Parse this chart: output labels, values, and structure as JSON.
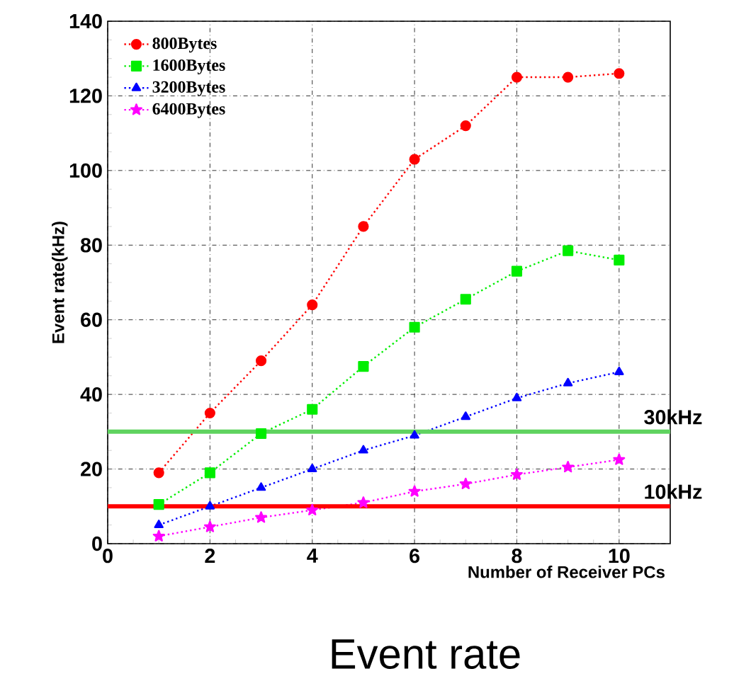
{
  "chart_data": {
    "type": "line",
    "title": "Event rate",
    "xlabel": "Number of Receiver PCs",
    "ylabel": "Event rate(kHz)",
    "x": [
      1,
      2,
      3,
      4,
      5,
      6,
      7,
      8,
      9,
      10
    ],
    "xlim": [
      0,
      11
    ],
    "xticks": [
      0,
      2,
      4,
      6,
      8,
      10
    ],
    "ylim": [
      0,
      140
    ],
    "yticks": [
      0,
      20,
      40,
      60,
      80,
      100,
      120,
      140
    ],
    "grid": true,
    "legend": "top left",
    "line_style": "dotted",
    "series": [
      {
        "name": "800Bytes",
        "color": "#ff0000",
        "marker": "circle",
        "values": [
          19,
          35,
          49,
          64,
          85,
          103,
          112,
          125,
          125,
          126
        ]
      },
      {
        "name": "1600Bytes",
        "color": "#00ee00",
        "marker": "square",
        "values": [
          10.5,
          19,
          29.5,
          36,
          47.5,
          58,
          65.5,
          73,
          78.5,
          76
        ]
      },
      {
        "name": "3200Bytes",
        "color": "#0000ff",
        "marker": "triangle",
        "values": [
          5,
          10,
          15,
          20,
          25,
          29,
          34,
          39,
          43,
          46
        ]
      },
      {
        "name": "6400Bytes",
        "color": "#ff00ff",
        "marker": "star",
        "values": [
          2,
          4.5,
          7,
          9,
          11,
          14,
          16,
          18.5,
          20.5,
          22.5
        ]
      }
    ],
    "ref_lines": [
      {
        "axis": "y",
        "value": 30,
        "label": "30kHz",
        "color": "#5fd35f"
      },
      {
        "axis": "y",
        "value": 10,
        "label": "10kHz",
        "color": "#ff0000"
      }
    ]
  }
}
